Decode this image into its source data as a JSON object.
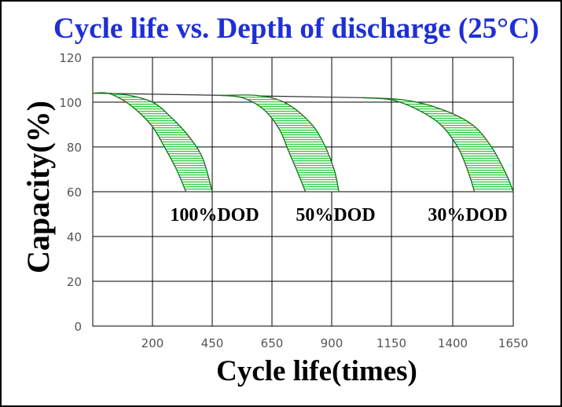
{
  "chart_data": {
    "type": "area",
    "title": "Cycle life vs. Depth of discharge (25°C)",
    "xlabel": "Cycle life(times)",
    "ylabel": "Capacity(%)",
    "x_ticks": [
      200,
      450,
      650,
      900,
      1150,
      1400,
      1650
    ],
    "y_ticks": [
      0,
      20,
      40,
      60,
      80,
      100,
      120
    ],
    "ylim": [
      0,
      120
    ],
    "grid": true,
    "colors": {
      "title": "#1f2fd6",
      "band_fill": "#2ecc40",
      "band_edge": "#1a6e1a",
      "grid": "#000000"
    },
    "series": [
      {
        "name": "100%DOD",
        "lower": [
          [
            0,
            104
          ],
          [
            50,
            104
          ],
          [
            100,
            101
          ],
          [
            150,
            96
          ],
          [
            200,
            89
          ],
          [
            250,
            80
          ],
          [
            300,
            70
          ],
          [
            340,
            60
          ]
        ],
        "upper": [
          [
            0,
            104
          ],
          [
            100,
            103.5
          ],
          [
            200,
            100
          ],
          [
            280,
            93
          ],
          [
            350,
            85
          ],
          [
            410,
            75
          ],
          [
            450,
            60
          ]
        ]
      },
      {
        "name": "50%DOD",
        "lower": [
          [
            480,
            103
          ],
          [
            550,
            102
          ],
          [
            620,
            97
          ],
          [
            680,
            88
          ],
          [
            720,
            78
          ],
          [
            760,
            68
          ],
          [
            790,
            60
          ]
        ],
        "upper": [
          [
            480,
            103
          ],
          [
            600,
            103
          ],
          [
            700,
            100
          ],
          [
            800,
            92
          ],
          [
            860,
            83
          ],
          [
            910,
            70
          ],
          [
            930,
            60
          ]
        ]
      },
      {
        "name": "30%DOD",
        "lower": [
          [
            1030,
            102
          ],
          [
            1150,
            101
          ],
          [
            1250,
            97
          ],
          [
            1350,
            90
          ],
          [
            1420,
            80
          ],
          [
            1460,
            70
          ],
          [
            1490,
            60
          ]
        ],
        "upper": [
          [
            1030,
            102
          ],
          [
            1200,
            101
          ],
          [
            1350,
            97
          ],
          [
            1480,
            90
          ],
          [
            1560,
            80
          ],
          [
            1620,
            68
          ],
          [
            1650,
            60
          ]
        ]
      }
    ],
    "baseline": {
      "from": [
        0,
        104
      ],
      "to": [
        1030,
        102
      ]
    }
  }
}
